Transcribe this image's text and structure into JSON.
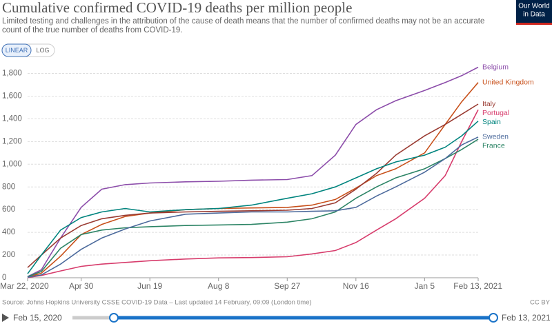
{
  "chart_data": {
    "type": "line",
    "title": "Cumulative confirmed COVID-19 deaths per million people",
    "subtitle": "Limited testing and challenges in the attribution of the cause of death means that the number of confirmed deaths may not be an accurate count of the true number of deaths from COVID-19.",
    "source": "Source: Johns Hopkins University CSSE COVID-19 Data – Last updated 14 February, 09:09 (London time)",
    "license": "CC BY",
    "x": [
      "2020-03-22",
      "2020-04-01",
      "2020-04-15",
      "2020-04-30",
      "2020-05-15",
      "2020-06-01",
      "2020-06-19",
      "2020-07-15",
      "2020-08-08",
      "2020-09-01",
      "2020-09-27",
      "2020-10-15",
      "2020-11-01",
      "2020-11-16",
      "2020-12-01",
      "2020-12-15",
      "2021-01-05",
      "2021-01-20",
      "2021-02-01",
      "2021-02-13"
    ],
    "series": [
      {
        "name": "Belgium",
        "color": "#8c4daa",
        "values": [
          10,
          70,
          350,
          620,
          780,
          820,
          835,
          845,
          850,
          860,
          865,
          900,
          1080,
          1350,
          1480,
          1560,
          1650,
          1720,
          1780,
          1855
        ]
      },
      {
        "name": "United Kingdom",
        "color": "#c8501a",
        "values": [
          5,
          40,
          190,
          380,
          470,
          540,
          570,
          600,
          610,
          615,
          620,
          640,
          690,
          790,
          900,
          960,
          1100,
          1350,
          1550,
          1720
        ]
      },
      {
        "name": "Italy",
        "color": "#9a3b32",
        "values": [
          90,
          200,
          350,
          460,
          520,
          550,
          570,
          580,
          585,
          590,
          595,
          610,
          660,
          780,
          920,
          1080,
          1250,
          1350,
          1440,
          1530
        ]
      },
      {
        "name": "Portugal",
        "color": "#d73c6c",
        "values": [
          2,
          20,
          60,
          100,
          120,
          135,
          150,
          165,
          175,
          178,
          185,
          210,
          240,
          310,
          420,
          520,
          700,
          900,
          1200,
          1480
        ]
      },
      {
        "name": "Spain",
        "color": "#00847e",
        "values": [
          35,
          200,
          420,
          530,
          580,
          610,
          580,
          600,
          610,
          640,
          700,
          740,
          800,
          880,
          960,
          1020,
          1080,
          1150,
          1250,
          1380
        ]
      },
      {
        "name": "France",
        "color": "#2c8465",
        "values": [
          10,
          55,
          260,
          380,
          420,
          440,
          450,
          460,
          465,
          470,
          490,
          520,
          580,
          700,
          800,
          880,
          960,
          1050,
          1130,
          1220
        ]
      },
      {
        "name": "Sweden",
        "color": "#4c6a9c",
        "values": [
          5,
          25,
          120,
          250,
          350,
          430,
          500,
          560,
          570,
          580,
          580,
          585,
          590,
          620,
          720,
          800,
          930,
          1050,
          1170,
          1240
        ]
      }
    ],
    "xlim": [
      "2020-03-22",
      "2021-02-13"
    ],
    "xticks": [
      {
        "value": "2020-03-22",
        "label": "Mar 22, 2020"
      },
      {
        "value": "2020-04-30",
        "label": "Apr 30"
      },
      {
        "value": "2020-06-19",
        "label": "Jun 19"
      },
      {
        "value": "2020-08-08",
        "label": "Aug 8"
      },
      {
        "value": "2020-09-27",
        "label": "Sep 27"
      },
      {
        "value": "2020-11-16",
        "label": "Nov 16"
      },
      {
        "value": "2021-01-05",
        "label": "Jan 5"
      },
      {
        "value": "2021-02-13",
        "label": "Feb 13, 2021"
      }
    ],
    "ylim": [
      0,
      1870
    ],
    "yticks": [
      0,
      200,
      400,
      600,
      800,
      {
        "value": 1000,
        "label": "1,000"
      },
      {
        "value": 1200,
        "label": "1,200"
      },
      {
        "value": 1400,
        "label": "1,400"
      },
      {
        "value": 1600,
        "label": "1,600"
      },
      {
        "value": 1800,
        "label": "1,800"
      }
    ],
    "grid": true
  },
  "controls": {
    "linear": "LINEAR",
    "log": "LOG"
  },
  "logo": [
    "Our World",
    "in Data"
  ],
  "timeline": {
    "start": "Feb 15, 2020",
    "end": "Feb 13, 2021"
  }
}
